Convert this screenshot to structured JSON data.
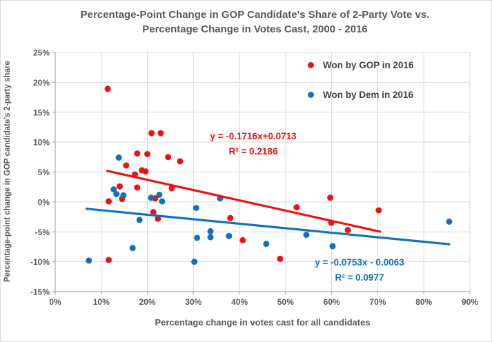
{
  "title": {
    "line1": "Percentage-Point Change in GOP Candidate's Share of 2-Party Vote vs.",
    "line2": "Percentage Change in Votes Cast, 2000 - 2016"
  },
  "colors": {
    "gop": "#ee1111",
    "dem": "#1172ba",
    "text": "#595959",
    "legend_text": "#404040",
    "gridline": "#d9d9d9",
    "axis": "#9b9b9b"
  },
  "chart_data": {
    "type": "scatter",
    "title": "Percentage-Point Change in GOP Candidate's Share of 2-Party Vote vs. Percentage Change in Votes Cast, 2000 - 2016",
    "xlabel": "Percentage change in votes cast for all candidates",
    "ylabel": "Percentage-point change in GOP candidate's 2-party share",
    "xlim": [
      0,
      0.9
    ],
    "ylim": [
      -15,
      25
    ],
    "x_tick_vals": [
      0,
      0.1,
      0.2,
      0.3,
      0.4,
      0.5,
      0.6,
      0.7,
      0.8,
      0.9
    ],
    "x_tick_labels": [
      "0%",
      "10%",
      "20%",
      "30%",
      "40%",
      "50%",
      "60%",
      "70%",
      "80%",
      "90%"
    ],
    "y_tick_vals": [
      25,
      20,
      15,
      10,
      5,
      0,
      -5,
      -10,
      -15
    ],
    "y_tick_labels": [
      "25%",
      "20%",
      "15%",
      "10%",
      "5%",
      "0%",
      "-5%",
      "-10%",
      "-15%"
    ],
    "grid": true,
    "legend_position": "top-right",
    "x_units": "fraction (percentage change in votes cast)",
    "y_units": "percentage points",
    "series": [
      {
        "name": "Won by GOP in 2016",
        "color": "#ee1111",
        "points": [
          [
            0.114,
            18.9
          ],
          [
            0.116,
            -9.7
          ],
          [
            0.209,
            11.5
          ],
          [
            0.229,
            11.5
          ],
          [
            0.178,
            8.1
          ],
          [
            0.2,
            8.0
          ],
          [
            0.245,
            7.5
          ],
          [
            0.271,
            6.8
          ],
          [
            0.154,
            6.1
          ],
          [
            0.188,
            5.3
          ],
          [
            0.196,
            5.1
          ],
          [
            0.173,
            4.6
          ],
          [
            0.14,
            2.6
          ],
          [
            0.178,
            2.4
          ],
          [
            0.253,
            2.3
          ],
          [
            0.145,
            0.5
          ],
          [
            0.116,
            0.1
          ],
          [
            0.217,
            0.6
          ],
          [
            0.213,
            -1.7
          ],
          [
            0.223,
            -2.8
          ],
          [
            0.38,
            -2.7
          ],
          [
            0.407,
            -6.4
          ],
          [
            0.488,
            -9.5
          ],
          [
            0.524,
            -0.9
          ],
          [
            0.597,
            0.7
          ],
          [
            0.599,
            -3.5
          ],
          [
            0.635,
            -4.7
          ],
          [
            0.702,
            -1.4
          ]
        ],
        "trendline": {
          "slope": -0.1716,
          "intercept": 0.0713,
          "equation": "y = -0.1716x+0.0713",
          "r2": 0.2186,
          "r2_label": "R² = 0.2186",
          "x_range": [
            0.113,
            0.705
          ]
        }
      },
      {
        "name": "Won by Dem in 2016",
        "color": "#1172ba",
        "points": [
          [
            0.073,
            -9.8
          ],
          [
            0.138,
            7.4
          ],
          [
            0.127,
            2.1
          ],
          [
            0.133,
            1.3
          ],
          [
            0.148,
            1.1
          ],
          [
            0.168,
            -7.7
          ],
          [
            0.183,
            -3.0
          ],
          [
            0.208,
            0.7
          ],
          [
            0.226,
            1.2
          ],
          [
            0.232,
            0.1
          ],
          [
            0.306,
            -1.0
          ],
          [
            0.302,
            -10.0
          ],
          [
            0.308,
            -6.0
          ],
          [
            0.337,
            -4.9
          ],
          [
            0.337,
            -5.9
          ],
          [
            0.358,
            0.6
          ],
          [
            0.377,
            -5.7
          ],
          [
            0.458,
            -7.0
          ],
          [
            0.545,
            -5.5
          ],
          [
            0.602,
            -7.4
          ],
          [
            0.855,
            -3.3
          ]
        ],
        "trendline": {
          "slope": -0.0753,
          "intercept": -0.0063,
          "equation": "y = -0.0753x - 0.0063",
          "r2": 0.0977,
          "r2_label": "R² = 0.0977",
          "x_range": [
            0.068,
            0.855
          ]
        }
      }
    ]
  }
}
